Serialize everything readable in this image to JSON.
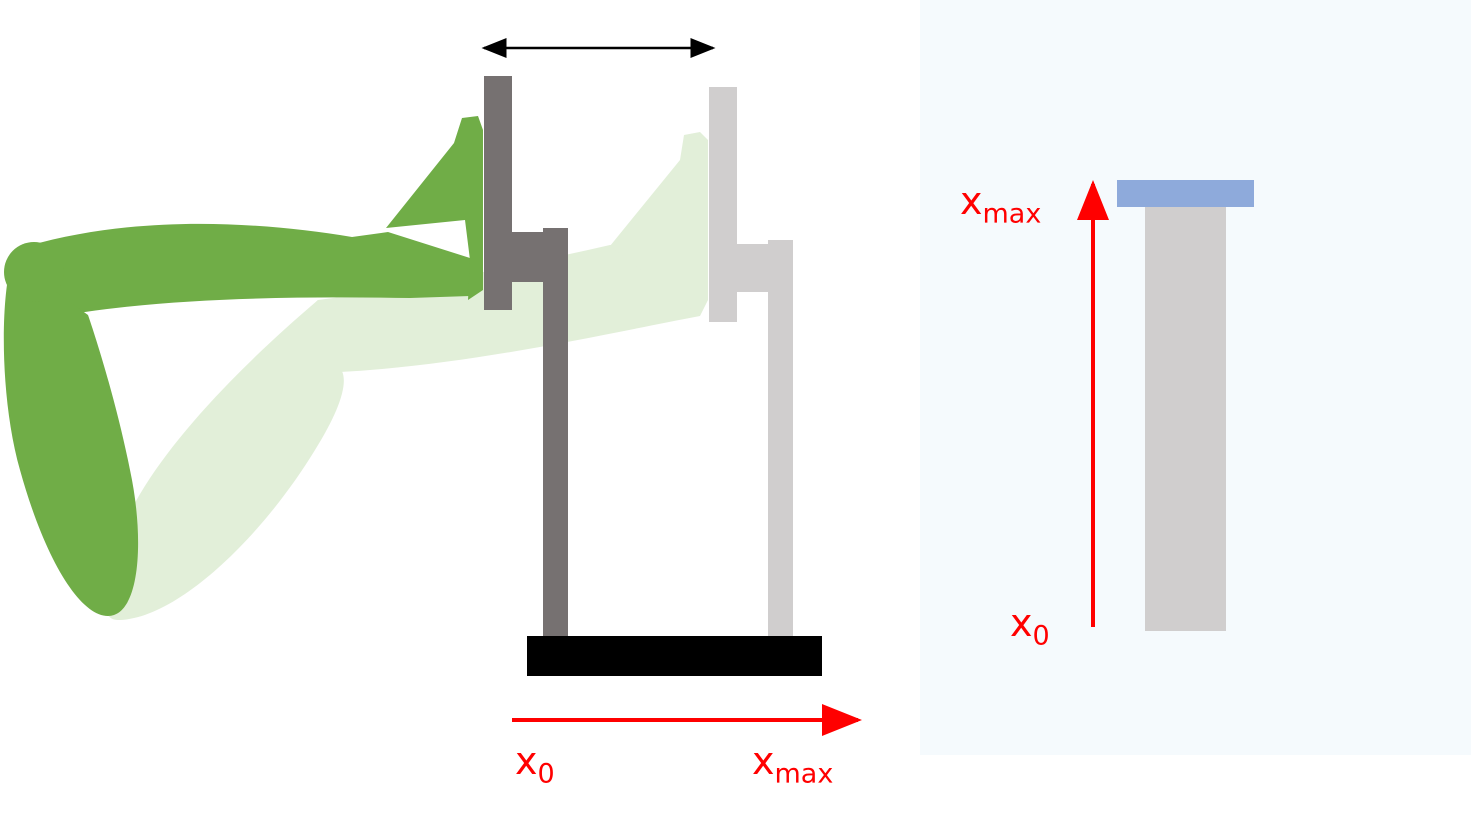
{
  "colors": {
    "leg_active": "#70ad47",
    "leg_ghost": "#e2efd9",
    "device_active": "#767171",
    "device_ghost": "#d0cece",
    "base": "#000000",
    "axis_arrow": "#ff0000",
    "label_text": "#ff0000",
    "range_arrow": "#000000",
    "gauge_panel_bg": "#f5fafd",
    "gauge_bar": "#d0cece",
    "gauge_cap": "#8eaadb"
  },
  "horizontal_axis": {
    "start_label": {
      "symbol": "x",
      "subscript": "0"
    },
    "end_label": {
      "symbol": "x",
      "subscript": "max"
    }
  },
  "gauge": {
    "start_label": {
      "symbol": "x",
      "subscript": "0"
    },
    "end_label": {
      "symbol": "x",
      "subscript": "max"
    },
    "level": 1.0
  }
}
